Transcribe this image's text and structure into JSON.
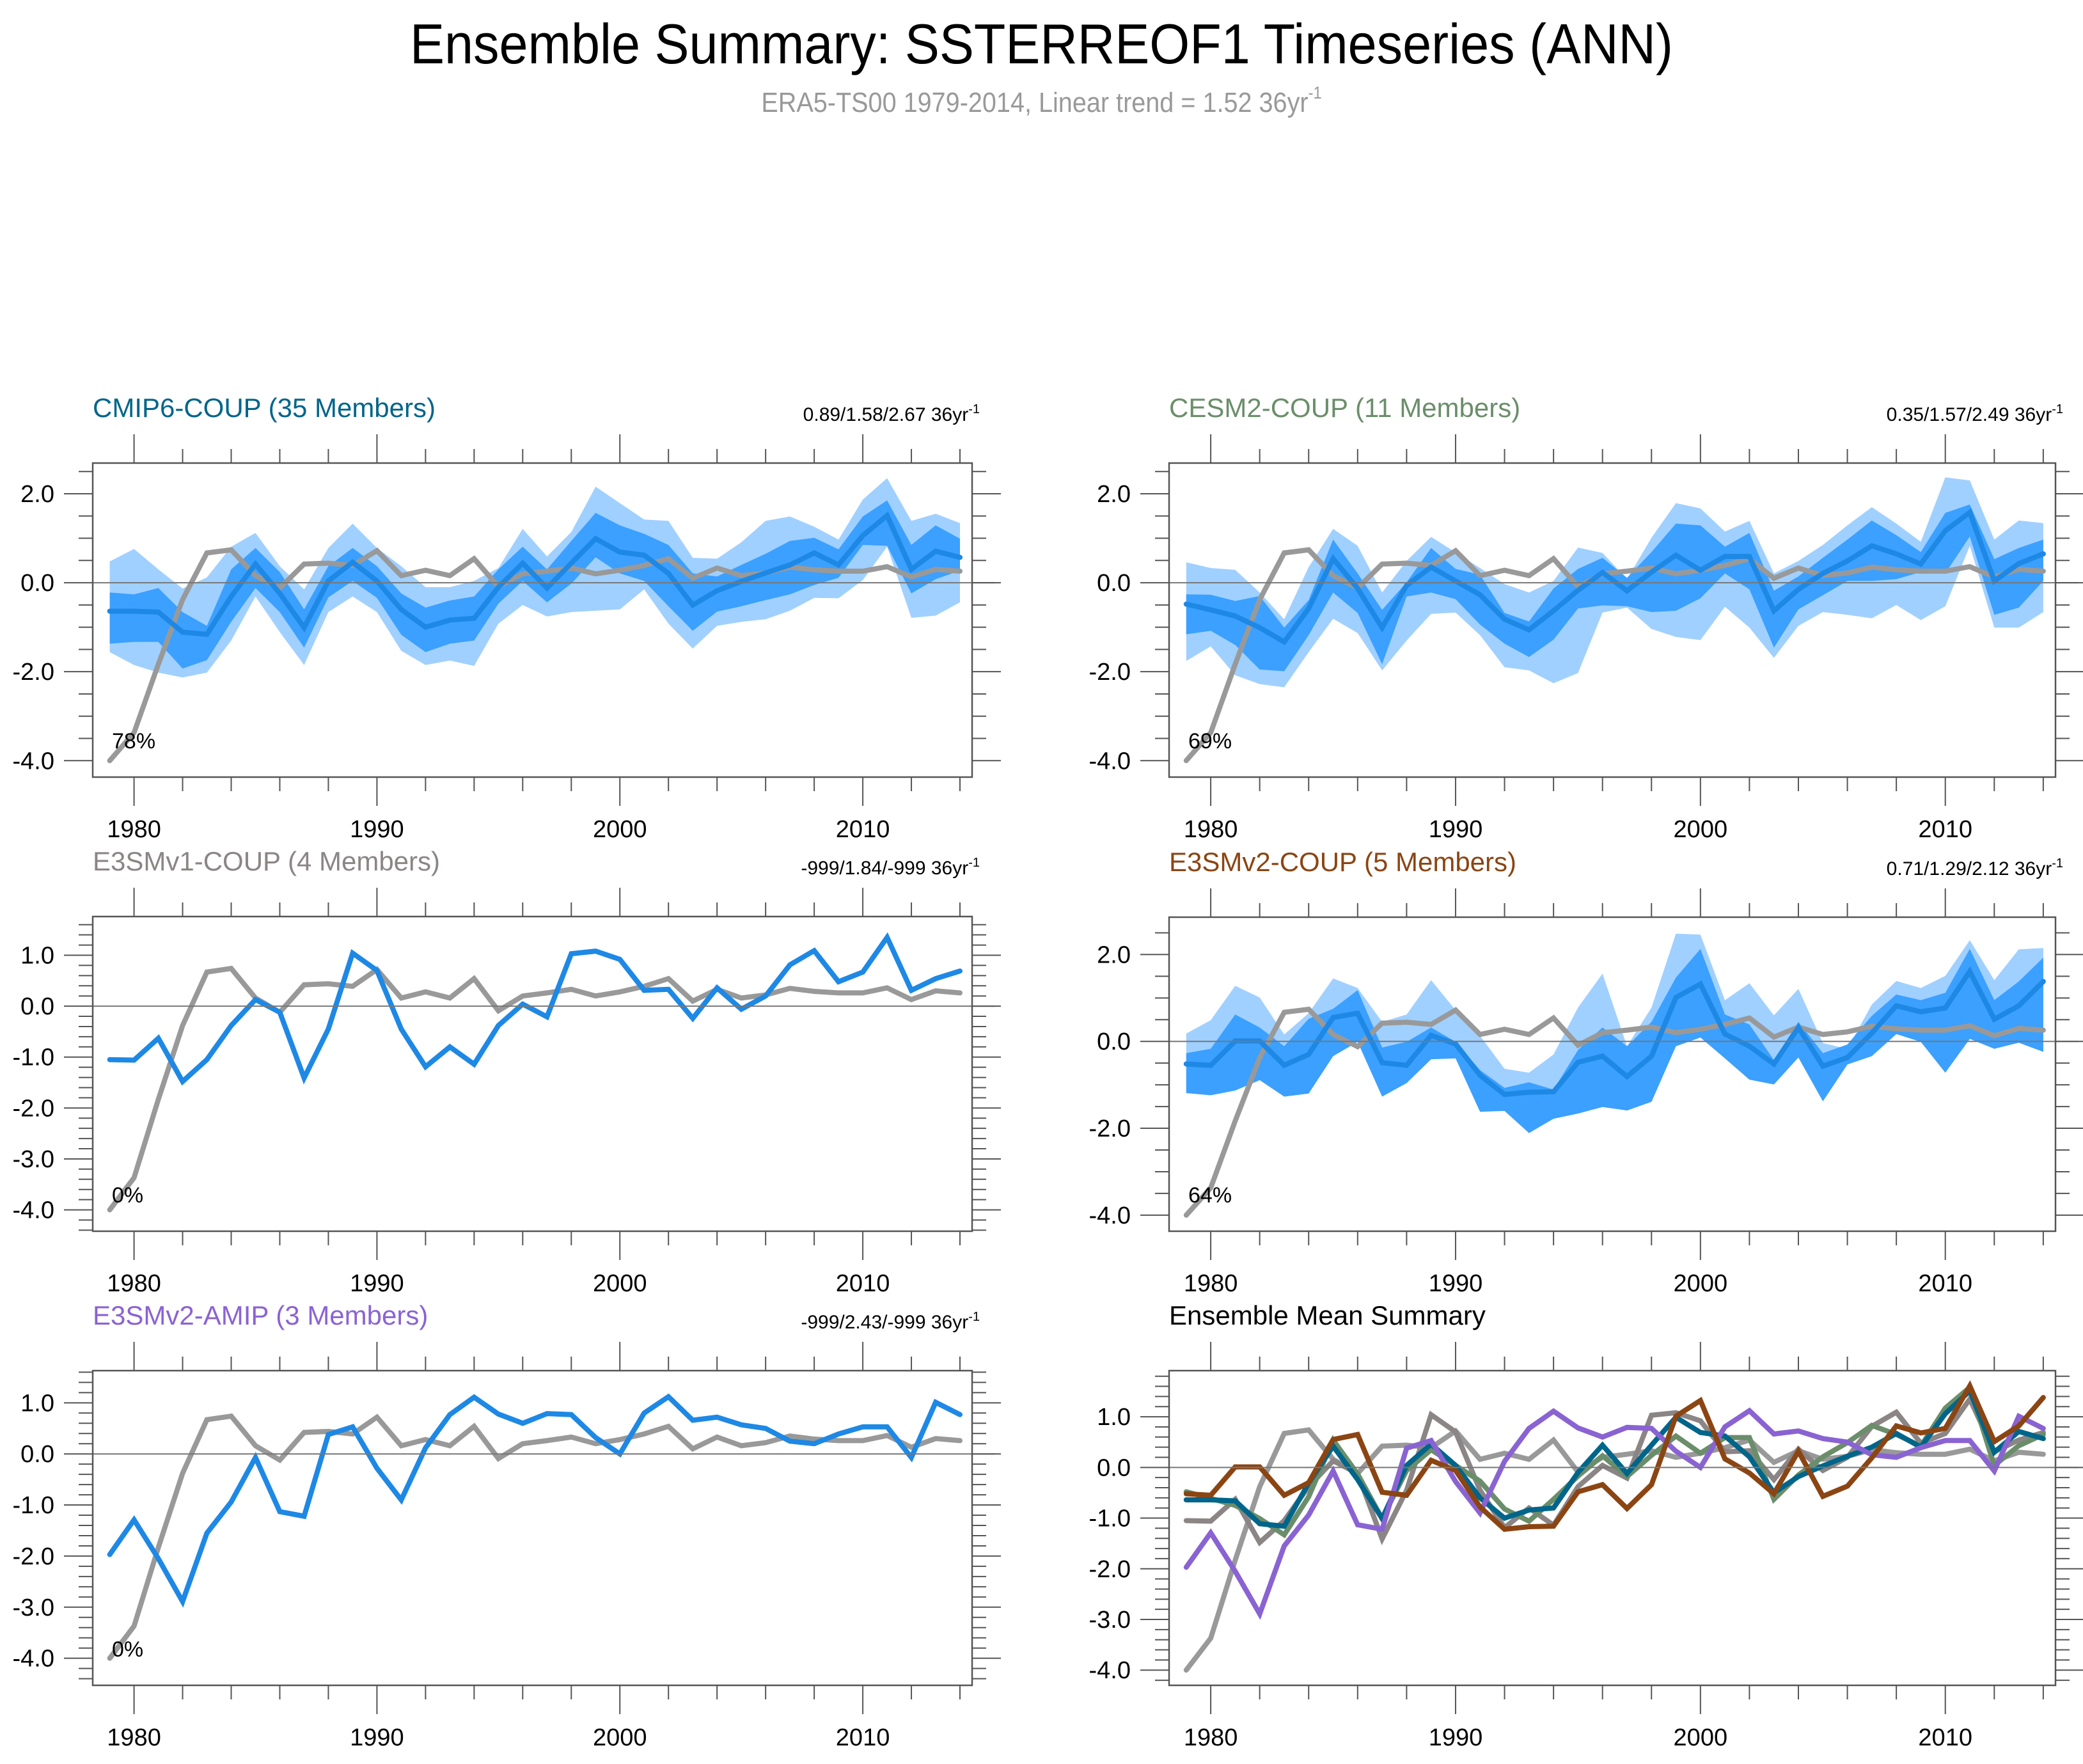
{
  "title": "Ensemble Summary: SSTERREOF1 Timeseries (ANN)",
  "subtitle": {
    "text": "ERA5-TS00 1979-2014, Linear trend = 1.52 36yr",
    "superscript": "-1"
  },
  "colors": {
    "obs": "#999999",
    "ens_mean": "#1E88E5",
    "band_inner": "#3BA0FF",
    "band_outer": "#A0D0FF",
    "zero_line": "#777777",
    "axis": "#555555",
    "CMIP6-COUP": "#00658A",
    "CESM2-COUP": "#6A8E6A",
    "E3SMv1-COUP": "#8B8585",
    "E3SMv2-COUP": "#8B4513",
    "E3SMv2-AMIP": "#8A63D2"
  },
  "chart_data": {
    "type": "line",
    "years": [
      1979,
      1980,
      1981,
      1982,
      1983,
      1984,
      1985,
      1986,
      1987,
      1988,
      1989,
      1990,
      1991,
      1992,
      1993,
      1994,
      1995,
      1996,
      1997,
      1998,
      1999,
      2000,
      2001,
      2002,
      2003,
      2004,
      2005,
      2006,
      2007,
      2008,
      2009,
      2010,
      2011,
      2012,
      2013,
      2014
    ],
    "xlim": [
      1978.3,
      2014.5
    ],
    "xticks": [
      1980,
      1990,
      2000,
      2010
    ],
    "obs": {
      "name": "ERA5-TS00",
      "values": [
        -4.0,
        -3.37,
        -1.83,
        -0.38,
        0.67,
        0.74,
        0.16,
        -0.12,
        0.42,
        0.44,
        0.39,
        0.72,
        0.16,
        0.28,
        0.16,
        0.54,
        -0.09,
        0.2,
        0.26,
        0.33,
        0.2,
        0.28,
        0.39,
        0.54,
        0.1,
        0.33,
        0.16,
        0.22,
        0.35,
        0.29,
        0.26,
        0.26,
        0.36,
        0.13,
        0.3,
        0.26
      ]
    },
    "panels": [
      {
        "id": "cmip6",
        "title": "CMIP6-COUP (35 Members)",
        "title_color_key": "CMIP6-COUP",
        "trend": "0.89/1.58/2.67 36yr",
        "trend_sup": "-1",
        "percent": "78%",
        "ylim": [
          -4.37,
          2.69
        ],
        "yticks": [
          -4.0,
          -2.0,
          0.0,
          2.0
        ],
        "ytick_labels": [
          "-4.0",
          "-2.0",
          "0.0",
          "2.0"
        ],
        "yminor": 0.5,
        "mean": [
          -0.64,
          -0.64,
          -0.66,
          -1.11,
          -1.16,
          -0.31,
          0.42,
          -0.24,
          -1.01,
          0.04,
          0.46,
          0.04,
          -0.6,
          -1.0,
          -0.84,
          -0.8,
          -0.1,
          0.44,
          -0.12,
          0.44,
          0.99,
          0.69,
          0.62,
          0.21,
          -0.5,
          -0.18,
          0.03,
          0.22,
          0.4,
          0.67,
          0.4,
          1.06,
          1.51,
          0.3,
          0.71,
          0.57
        ],
        "inner_upper": [
          -0.22,
          -0.26,
          -0.12,
          -0.66,
          -0.97,
          0.3,
          0.78,
          0.24,
          -0.6,
          0.37,
          0.78,
          0.37,
          -0.24,
          -0.56,
          -0.4,
          -0.31,
          0.3,
          0.81,
          0.3,
          0.94,
          1.57,
          1.29,
          1.1,
          0.85,
          0.21,
          0.14,
          0.4,
          0.65,
          0.94,
          1.01,
          0.75,
          1.49,
          1.85,
          0.85,
          1.29,
          0.99
        ],
        "inner_lower": [
          -1.37,
          -1.33,
          -1.33,
          -1.93,
          -1.74,
          -0.88,
          -0.12,
          -0.66,
          -1.46,
          -0.33,
          0.04,
          -0.34,
          -1.17,
          -1.56,
          -1.37,
          -1.3,
          -0.47,
          0.04,
          -0.44,
          -0.02,
          0.57,
          0.21,
          0.04,
          -0.53,
          -1.08,
          -0.65,
          -0.53,
          -0.39,
          -0.26,
          -0.05,
          0.11,
          0.85,
          0.83,
          -0.24,
          0.08,
          0.27
        ],
        "outer_upper": [
          0.48,
          0.76,
          0.3,
          -0.13,
          0.12,
          0.81,
          1.12,
          0.37,
          -0.15,
          0.78,
          1.33,
          0.78,
          0.37,
          -0.1,
          -0.1,
          0.04,
          0.33,
          1.21,
          0.59,
          1.14,
          2.16,
          1.79,
          1.42,
          1.39,
          0.56,
          0.54,
          0.91,
          1.39,
          1.49,
          1.26,
          0.97,
          1.87,
          2.35,
          1.39,
          1.55,
          1.34
        ],
        "outer_lower": [
          -1.56,
          -1.85,
          -2.02,
          -2.13,
          -2.02,
          -1.3,
          -0.31,
          -1.11,
          -1.85,
          -0.66,
          -0.31,
          -0.66,
          -1.53,
          -1.85,
          -1.75,
          -1.87,
          -0.92,
          -0.5,
          -0.76,
          -0.66,
          -0.63,
          -0.6,
          -0.15,
          -0.92,
          -1.48,
          -0.97,
          -0.88,
          -0.82,
          -0.63,
          -0.34,
          -0.35,
          0.06,
          0.81,
          -0.79,
          -0.74,
          -0.44
        ]
      },
      {
        "id": "cesm2",
        "title": "CESM2-COUP (11 Members)",
        "title_color_key": "CESM2-COUP",
        "trend": "0.35/1.57/2.49 36yr",
        "trend_sup": "-1",
        "percent": "69%",
        "ylim": [
          -4.37,
          2.69
        ],
        "yticks": [
          -4.0,
          -2.0,
          0.0,
          2.0
        ],
        "ytick_labels": [
          "-4.0",
          "-2.0",
          "0.0",
          "2.0"
        ],
        "yminor": 0.5,
        "mean": [
          -0.48,
          -0.61,
          -0.75,
          -1.01,
          -1.33,
          -0.58,
          0.54,
          -0.13,
          -1.01,
          -0.06,
          0.35,
          0.04,
          -0.27,
          -0.82,
          -1.06,
          -0.63,
          -0.17,
          0.23,
          -0.18,
          0.24,
          0.62,
          0.28,
          0.59,
          0.59,
          -0.63,
          -0.15,
          0.21,
          0.49,
          0.83,
          0.65,
          0.42,
          1.17,
          1.58,
          0.04,
          0.43,
          0.65
        ],
        "inner_upper": [
          -0.26,
          -0.27,
          -0.41,
          -0.3,
          -1.01,
          -0.39,
          0.97,
          0.21,
          -0.61,
          0.01,
          0.78,
          0.31,
          0.18,
          -0.68,
          -0.87,
          -0.13,
          0.31,
          0.56,
          0.11,
          0.69,
          1.33,
          1.29,
          0.81,
          1.12,
          -0.18,
          0.14,
          0.56,
          0.97,
          1.4,
          1.07,
          0.69,
          1.57,
          1.76,
          0.53,
          0.78,
          0.97
        ],
        "inner_lower": [
          -1.16,
          -1.08,
          -1.4,
          -1.95,
          -1.99,
          -1.18,
          -0.22,
          -0.68,
          -1.83,
          -0.31,
          -0.22,
          -0.37,
          -0.94,
          -1.37,
          -1.67,
          -1.28,
          -0.58,
          -0.51,
          -0.53,
          -0.66,
          -0.63,
          -0.35,
          0.21,
          -0.15,
          -1.46,
          -0.6,
          -0.28,
          0.04,
          0.04,
          0.08,
          0.24,
          0.21,
          1.04,
          -0.72,
          -0.56,
          0.04
        ],
        "outer_upper": [
          0.46,
          0.33,
          0.29,
          -0.22,
          -0.82,
          0.35,
          1.21,
          0.83,
          -0.22,
          0.49,
          1.03,
          0.68,
          0.33,
          -0.03,
          -0.22,
          0.04,
          0.79,
          0.67,
          0.08,
          1.01,
          1.79,
          1.67,
          1.15,
          1.39,
          0.21,
          0.49,
          0.85,
          1.29,
          1.7,
          1.33,
          0.92,
          2.37,
          2.3,
          0.97,
          1.4,
          1.34
        ],
        "outer_lower": [
          -1.76,
          -1.43,
          -2.08,
          -2.28,
          -2.35,
          -1.56,
          -0.81,
          -1.13,
          -1.97,
          -1.3,
          -0.7,
          -0.67,
          -1.18,
          -1.9,
          -1.97,
          -2.26,
          -2.03,
          -0.67,
          -0.56,
          -1.04,
          -1.22,
          -1.29,
          -0.54,
          -1.01,
          -1.69,
          -0.97,
          -0.66,
          -0.72,
          -0.8,
          -0.5,
          -0.84,
          -0.53,
          0.83,
          -1.01,
          -1.01,
          -0.66
        ]
      },
      {
        "id": "e3smv1",
        "title": "E3SMv1-COUP (4 Members)",
        "title_color_key": "E3SMv1-COUP",
        "trend": "-999/1.84/-999 36yr",
        "trend_sup": "-1",
        "percent": "0%",
        "ylim": [
          -4.42,
          1.76
        ],
        "yticks": [
          -4.0,
          -3.0,
          -2.0,
          -1.0,
          0.0,
          1.0
        ],
        "ytick_labels": [
          "-4.0",
          "-3.0",
          "-2.0",
          "-1.0",
          "0.0",
          "1.0"
        ],
        "yminor": 0.2,
        "mean": [
          -1.05,
          -1.06,
          -0.63,
          -1.48,
          -1.05,
          -0.38,
          0.13,
          -0.12,
          -1.41,
          -0.45,
          1.04,
          0.7,
          -0.45,
          -1.19,
          -0.8,
          -1.14,
          -0.38,
          0.04,
          -0.21,
          1.03,
          1.08,
          0.92,
          0.31,
          0.33,
          -0.24,
          0.36,
          -0.06,
          0.2,
          0.81,
          1.09,
          0.48,
          0.67,
          1.35,
          0.31,
          0.54,
          0.69
        ]
      },
      {
        "id": "e3smv2-coup",
        "title": "E3SMv2-COUP (5 Members)",
        "title_color_key": "E3SMv2-COUP",
        "trend": "0.71/1.29/2.12 36yr",
        "trend_sup": "-1",
        "percent": "64%",
        "ylim": [
          -4.37,
          2.86
        ],
        "yticks": [
          -4.0,
          -2.0,
          0.0,
          2.0
        ],
        "ytick_labels": [
          "-4.0",
          "-2.0",
          "0.0",
          "2.0"
        ],
        "yminor": 0.5,
        "mean": [
          -0.52,
          -0.55,
          0.01,
          0.01,
          -0.55,
          -0.3,
          0.55,
          0.65,
          -0.49,
          -0.55,
          0.14,
          -0.06,
          -0.78,
          -1.22,
          -1.17,
          -1.16,
          -0.48,
          -0.34,
          -0.81,
          -0.34,
          1.01,
          1.32,
          0.17,
          -0.11,
          -0.52,
          0.32,
          -0.57,
          -0.37,
          0.19,
          0.82,
          0.68,
          0.77,
          1.61,
          0.51,
          0.82,
          1.38
        ],
        "inner_upper": [
          -0.27,
          -0.17,
          0.62,
          0.32,
          -0.11,
          0.52,
          0.75,
          1.18,
          -0.14,
          -0.01,
          0.32,
          -0.01,
          -0.66,
          -1.07,
          -0.94,
          -1.11,
          -0.2,
          0.32,
          -0.11,
          0.45,
          1.47,
          2.13,
          0.62,
          0.39,
          -0.43,
          0.45,
          -0.27,
          -0.07,
          0.59,
          1.08,
          0.95,
          1.12,
          2.13,
          0.95,
          1.38,
          1.93
        ],
        "inner_lower": [
          -1.19,
          -1.24,
          -1.13,
          -0.89,
          -1.27,
          -1.2,
          -0.34,
          -0.01,
          -1.27,
          -0.96,
          -0.41,
          -0.39,
          -1.62,
          -1.6,
          -2.11,
          -1.78,
          -1.66,
          -1.51,
          -1.59,
          -1.39,
          -0.11,
          0.09,
          -0.39,
          -0.88,
          -0.99,
          -0.37,
          -1.38,
          -0.53,
          -0.34,
          0.17,
          -0.01,
          -0.72,
          0.06,
          -0.17,
          -0.03,
          -0.24
        ],
        "outer_upper": [
          0.18,
          0.49,
          1.28,
          1.01,
          0.16,
          0.65,
          1.45,
          1.23,
          0.45,
          0.62,
          1.41,
          0.72,
          0.13,
          -0.63,
          -0.72,
          -0.3,
          0.78,
          1.56,
          -0.11,
          0.78,
          2.48,
          2.46,
          0.95,
          1.34,
          0.6,
          1.21,
          -0.04,
          -0.17,
          0.85,
          1.39,
          1.23,
          1.51,
          2.33,
          1.41,
          2.12,
          2.15
        ],
        "outer_lower": [
          -1.19,
          -1.24,
          -1.13,
          -0.89,
          -1.27,
          -1.2,
          -0.34,
          -0.01,
          -1.27,
          -0.96,
          -0.41,
          -0.39,
          -1.62,
          -1.6,
          -2.11,
          -1.78,
          -1.66,
          -1.51,
          -1.59,
          -1.39,
          -0.11,
          0.09,
          -0.39,
          -0.88,
          -0.99,
          -0.37,
          -1.38,
          -0.53,
          -0.34,
          0.17,
          -0.01,
          -0.72,
          0.06,
          -0.17,
          -0.03,
          -0.24
        ]
      },
      {
        "id": "e3smv2-amip",
        "title": "E3SMv2-AMIP (3 Members)",
        "title_color_key": "E3SMv2-AMIP",
        "trend": "-999/2.43/-999 36yr",
        "trend_sup": "-1",
        "percent": "0%",
        "ylim": [
          -4.53,
          1.63
        ],
        "yticks": [
          -4.0,
          -3.0,
          -2.0,
          -1.0,
          0.0,
          1.0
        ],
        "ytick_labels": [
          "-4.0",
          "-3.0",
          "-2.0",
          "-1.0",
          "0.0",
          "1.0"
        ],
        "yminor": 0.2,
        "mean": [
          -1.97,
          -1.29,
          -2.05,
          -2.89,
          -1.55,
          -0.94,
          -0.07,
          -1.13,
          -1.22,
          0.38,
          0.53,
          -0.28,
          -0.9,
          0.12,
          0.77,
          1.11,
          0.78,
          0.6,
          0.79,
          0.77,
          0.32,
          0.0,
          0.8,
          1.12,
          0.66,
          0.72,
          0.57,
          0.5,
          0.25,
          0.2,
          0.39,
          0.53,
          0.53,
          -0.07,
          1.01,
          0.77
        ]
      },
      {
        "id": "summary",
        "title": "Ensemble Mean Summary",
        "title_color": "#000000",
        "ylim": [
          -4.3,
          1.91
        ],
        "yticks": [
          -4.0,
          -3.0,
          -2.0,
          -1.0,
          0.0,
          1.0
        ],
        "ytick_labels": [
          "-4.0",
          "-3.0",
          "-2.0",
          "-1.0",
          "0.0",
          "1.0"
        ],
        "yminor": 0.2,
        "series_keys": [
          "E3SMv1-COUP",
          "CESM2-COUP",
          "CMIP6-COUP",
          "E3SMv2-AMIP",
          "E3SMv2-COUP"
        ]
      }
    ]
  }
}
